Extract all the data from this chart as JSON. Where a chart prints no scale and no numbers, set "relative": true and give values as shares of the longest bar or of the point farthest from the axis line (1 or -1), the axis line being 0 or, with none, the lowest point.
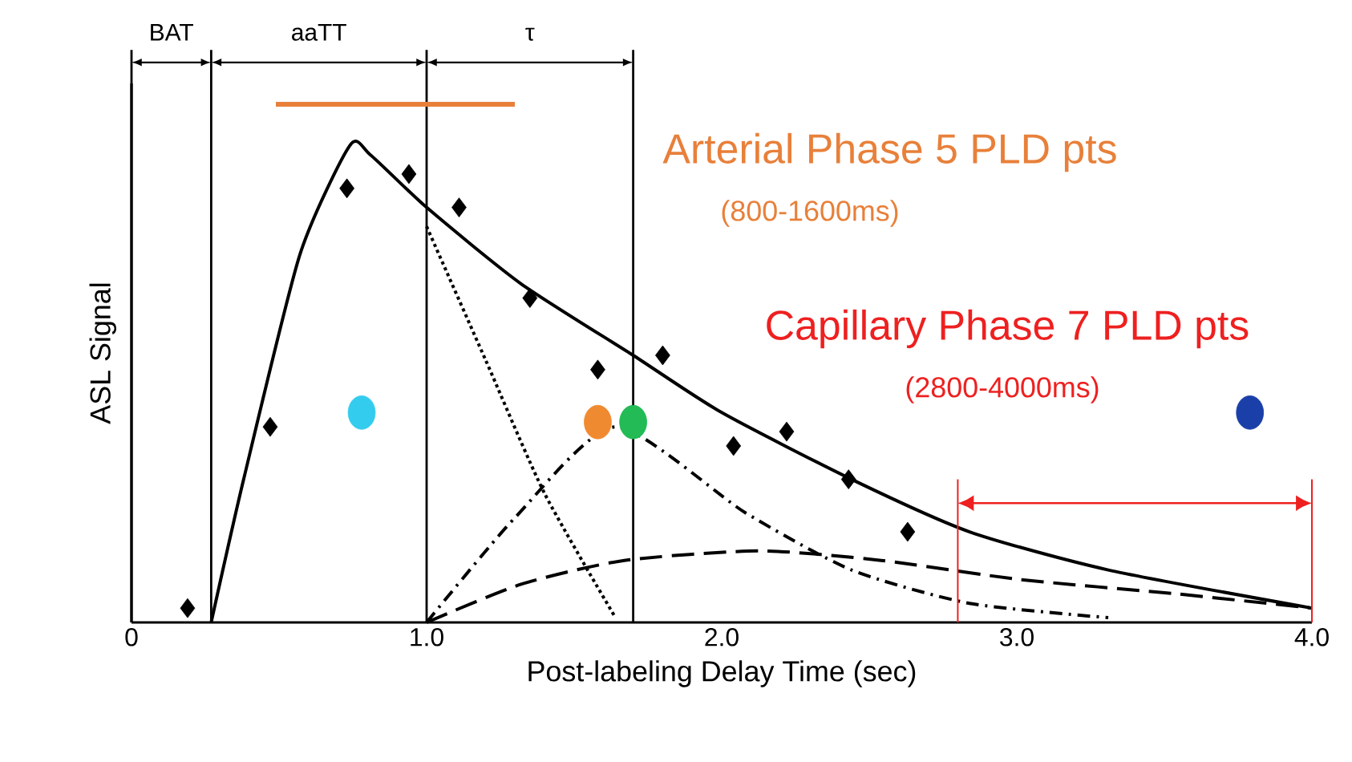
{
  "chart_data": {
    "type": "line",
    "relative": true,
    "xlabel": "Post-labeling Delay Time (sec)",
    "ylabel": "ASL Signal",
    "xlim": [
      0,
      4
    ],
    "xticks": [
      0,
      {
        "value": 1,
        "label": "1.0"
      },
      {
        "value": 2,
        "label": "2.0"
      },
      {
        "value": 3,
        "label": "3.0"
      },
      {
        "value": 4,
        "label": "4.0"
      }
    ],
    "series": [
      {
        "type": "scatter",
        "marker": "diamond",
        "color": "#000000",
        "x": [
          0.19,
          0.47,
          0.73,
          0.94,
          1.11,
          1.35,
          1.58,
          1.8,
          2.04,
          2.22,
          2.43,
          2.63
        ],
        "values": [
          0.03,
          0.41,
          0.91,
          0.94,
          0.87,
          0.68,
          0.53,
          0.56,
          0.37,
          0.4,
          0.3,
          0.19
        ]
      },
      {
        "line_style": "solid",
        "color": "#000000",
        "x": [
          0.27,
          0.38,
          0.57,
          0.74,
          0.81,
          1.0,
          1.32,
          1.7,
          2.0,
          2.44,
          2.84,
          3.31,
          4.0
        ],
        "values": [
          0,
          0.3,
          0.77,
          1.0,
          0.98,
          0.87,
          0.71,
          0.56,
          0.44,
          0.3,
          0.19,
          0.11,
          0.03
        ]
      },
      {
        "line_style": "dotted",
        "color": "#000000",
        "x": [
          1.0,
          1.2,
          1.4,
          1.64
        ],
        "values": [
          0.83,
          0.55,
          0.27,
          0.01
        ]
      },
      {
        "line_style": "dashdotted",
        "color": "#000000",
        "x": [
          1.0,
          1.3,
          1.64,
          2.08,
          2.44,
          2.84,
          3.31
        ],
        "values": [
          0,
          0.22,
          0.41,
          0.23,
          0.11,
          0.04,
          0.01
        ]
      },
      {
        "line_style": "dashed",
        "color": "#000000",
        "x": [
          1.0,
          1.32,
          1.67,
          2.13,
          2.54,
          3.01,
          3.54,
          4.0
        ],
        "values": [
          0,
          0.08,
          0.13,
          0.15,
          0.13,
          0.09,
          0.06,
          0.03
        ]
      },
      {
        "type": "scatter",
        "marker": "circle",
        "color": "#33ccee",
        "x": [
          0.78
        ],
        "values": [
          0.44
        ]
      },
      {
        "type": "scatter",
        "marker": "circle",
        "color": "#f08a30",
        "x": [
          1.58
        ],
        "values": [
          0.42
        ]
      },
      {
        "type": "scatter",
        "marker": "circle",
        "color": "#22bb55",
        "x": [
          1.7
        ],
        "values": [
          0.42
        ]
      },
      {
        "type": "scatter",
        "marker": "circle",
        "color": "#1a3fa8",
        "x": [
          3.79
        ],
        "values": [
          0.44
        ]
      }
    ],
    "ref_lines": [
      {
        "axis": "x",
        "value": 0.27
      },
      {
        "axis": "x",
        "value": 1.0
      },
      {
        "axis": "x",
        "value": 1.7
      },
      {
        "axis": "x",
        "value": 2.8,
        "color": "#ee2020"
      },
      {
        "axis": "x",
        "value": 4.0,
        "color": "#ee2020"
      }
    ],
    "annotations": [
      "BAT",
      "aaTT",
      "τ",
      "Arterial Phase 5 PLD pts",
      "(800-1600ms)",
      "Capillary Phase 7 PLD pts",
      "(2800-4000ms)"
    ]
  }
}
